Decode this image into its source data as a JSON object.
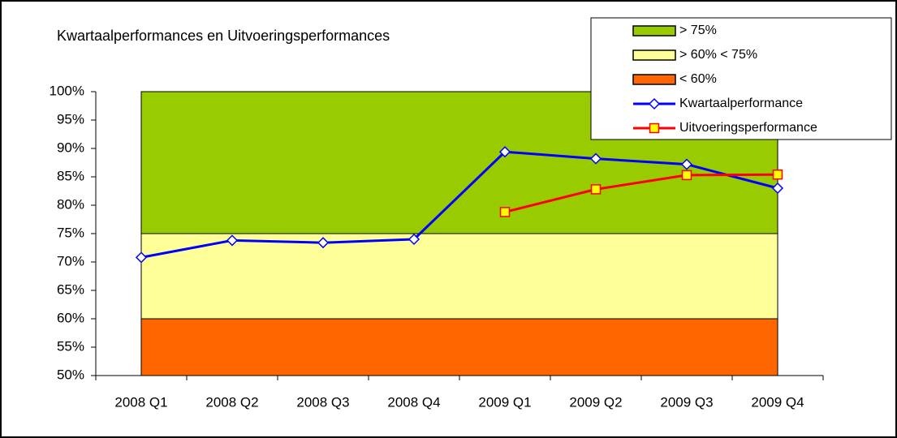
{
  "chart_data": {
    "type": "line",
    "title": "Kwartaalperformances en Uitvoeringsperformances",
    "categories": [
      "2008 Q1",
      "2008 Q2",
      "2008 Q3",
      "2008 Q4",
      "2009 Q1",
      "2009 Q2",
      "2009 Q3",
      "2009 Q4"
    ],
    "bands": [
      {
        "name": "> 75%",
        "color": "#99cc00",
        "from": 75,
        "to": 100
      },
      {
        "name": "> 60% < 75%",
        "color": "#ffff99",
        "from": 60,
        "to": 75
      },
      {
        "name": "< 60%",
        "color": "#ff6600",
        "from": 50,
        "to": 60
      }
    ],
    "series": [
      {
        "name": "Kwartaalperformance",
        "color": "#0000ff",
        "marker": "diamond",
        "marker_fill": "#ffffff",
        "values": [
          70.8,
          73.8,
          73.4,
          74.0,
          89.4,
          88.2,
          87.2,
          83.0
        ]
      },
      {
        "name": "Uitvoeringsperformance",
        "color": "#ff0000",
        "marker": "square",
        "marker_fill": "#ffff00",
        "values": [
          null,
          null,
          null,
          null,
          78.8,
          82.8,
          85.3,
          85.4
        ]
      }
    ],
    "ylim": [
      50,
      100
    ],
    "yticks": [
      {
        "value": 50,
        "label": "50%"
      },
      {
        "value": 55,
        "label": "55%"
      },
      {
        "value": 60,
        "label": "60%"
      },
      {
        "value": 65,
        "label": "65%"
      },
      {
        "value": 70,
        "label": "70%"
      },
      {
        "value": 75,
        "label": "75%"
      },
      {
        "value": 80,
        "label": "80%"
      },
      {
        "value": 85,
        "label": "85%"
      },
      {
        "value": 90,
        "label": "90%"
      },
      {
        "value": 95,
        "label": "95%"
      },
      {
        "value": 100,
        "label": "100%"
      }
    ],
    "legend": "top-right"
  }
}
